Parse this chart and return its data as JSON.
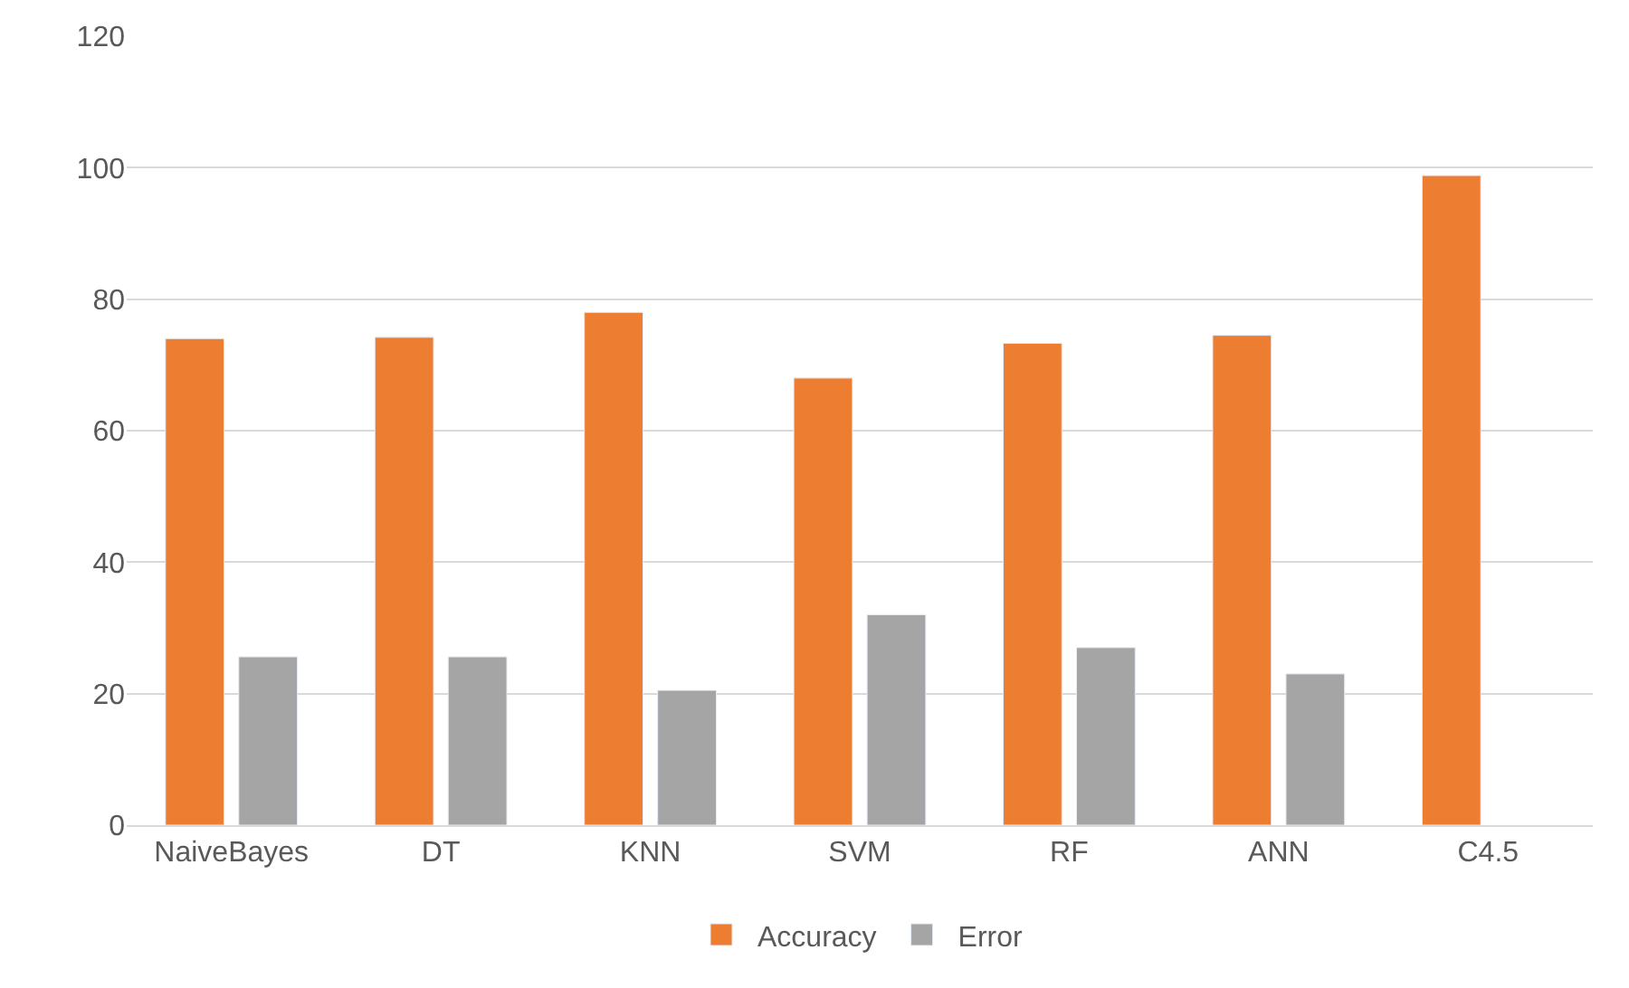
{
  "chart_data": {
    "type": "bar",
    "categories": [
      "NaiveBayes",
      "DT",
      "KNN",
      "SVM",
      "RF",
      "ANN",
      "C4.5"
    ],
    "series": [
      {
        "name": "Accuracy",
        "color": "#ed7d31",
        "values": [
          74,
          74.2,
          78,
          68,
          73.3,
          74.5,
          98.8
        ]
      },
      {
        "name": "Error",
        "color": "#a5a5a5",
        "values": [
          25.6,
          25.6,
          20.5,
          32,
          27,
          23,
          null
        ]
      }
    ],
    "ylim": [
      0,
      120
    ],
    "yticks": [
      0,
      20,
      40,
      60,
      80,
      100,
      120
    ],
    "grid": "y",
    "legend": "bottom"
  }
}
